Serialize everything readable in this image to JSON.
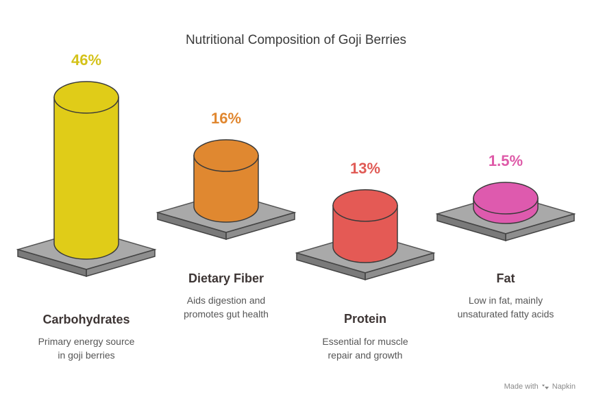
{
  "title": "Nutritional Composition of Goji Berries",
  "credit": {
    "prefix": "Made with",
    "brand": "Napkin"
  },
  "chart_data": {
    "type": "bar",
    "title": "Nutritional Composition of Goji Berries",
    "categories": [
      "Carbohydrates",
      "Dietary Fiber",
      "Protein",
      "Fat"
    ],
    "values": [
      46,
      16,
      13,
      1.5
    ],
    "value_labels": [
      "46%",
      "16%",
      "13%",
      "1.5%"
    ],
    "descriptions": [
      [
        "Primary energy source",
        "in goji berries"
      ],
      [
        "Aids digestion and",
        "promotes gut health"
      ],
      [
        "Essential for muscle",
        "repair and growth"
      ],
      [
        "Low in fat, mainly",
        "unsaturated fatty acids"
      ]
    ],
    "colors": [
      "#E0CC18",
      "#E08830",
      "#E45A55",
      "#DE5AAE"
    ],
    "label_colors": [
      "#D4C21A",
      "#E0862E",
      "#E05A55",
      "#DE5AA8"
    ],
    "ylim": [
      0,
      46
    ],
    "grid": false,
    "legend": "none"
  }
}
